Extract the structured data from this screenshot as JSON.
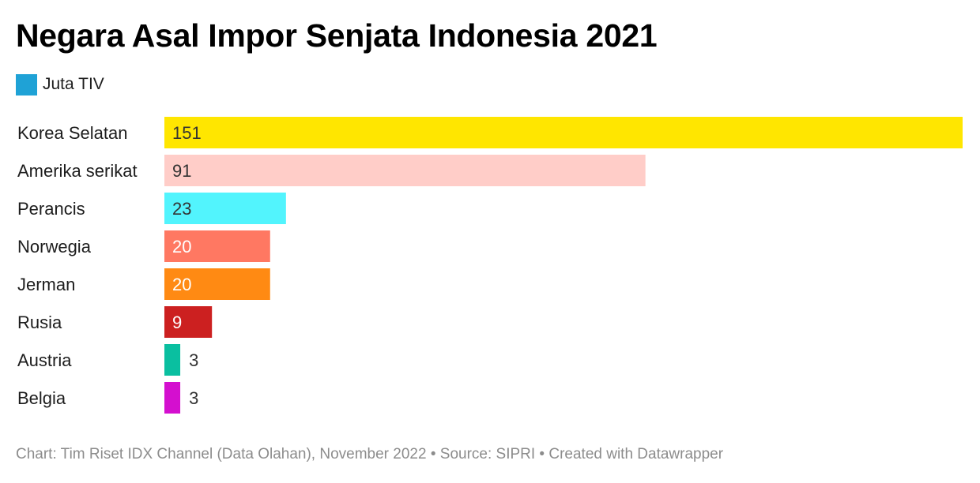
{
  "title": "Negara Asal Impor Senjata Indonesia 2021",
  "legend": {
    "label": "Juta TIV",
    "color": "#1fa2d6"
  },
  "footer": "Chart: Tim Riset IDX Channel (Data Olahan), November 2022 • Source: SIPRI • Created with Datawrapper",
  "chart_data": {
    "type": "bar",
    "orientation": "horizontal",
    "title": "Negara Asal Impor Senjata Indonesia 2021",
    "series": [
      {
        "name": "Juta TIV",
        "values": [
          151,
          91,
          23,
          20,
          20,
          9,
          3,
          3
        ]
      }
    ],
    "categories": [
      "Korea Selatan",
      "Amerika serikat",
      "Perancis",
      "Norwegia",
      "Jerman",
      "Rusia",
      "Austria",
      "Belgia"
    ],
    "values": [
      151,
      91,
      23,
      20,
      20,
      9,
      3,
      3
    ],
    "colors": [
      "#ffe600",
      "#ffcdc8",
      "#52f4fd",
      "#ff7862",
      "#ff8a13",
      "#cc2020",
      "#0abfa0",
      "#d40fcf"
    ],
    "label_colors": [
      "#333333",
      "#333333",
      "#333333",
      "#ffffff",
      "#ffffff",
      "#ffffff",
      "#333333",
      "#333333"
    ],
    "xlim": [
      0,
      151
    ],
    "grid": false,
    "legend_position": "top-left"
  },
  "source": "SIPRI",
  "credit": "Created with Datawrapper"
}
